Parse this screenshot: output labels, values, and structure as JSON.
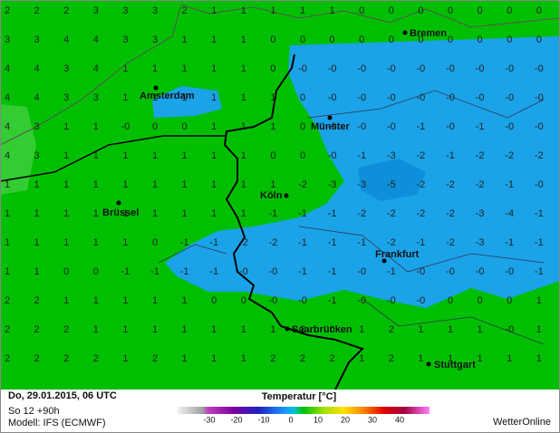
{
  "grid": {
    "rows": [
      [
        "2",
        "2",
        "2",
        "3",
        "3",
        "3",
        "2",
        "1",
        "1",
        "1",
        "1",
        "1",
        "0",
        "0",
        "0",
        "0",
        "0",
        "0",
        "0"
      ],
      [
        "3",
        "3",
        "4",
        "4",
        "3",
        "3",
        "1",
        "1",
        "1",
        "0",
        "0",
        "0",
        "0",
        "0",
        "0",
        "0",
        "0",
        "0",
        "0"
      ],
      [
        "4",
        "4",
        "3",
        "4",
        "1",
        "1",
        "1",
        "1",
        "1",
        "0",
        "-0",
        "-0",
        "-0",
        "-0",
        "-0",
        "-0",
        "-0",
        "-0",
        "-0"
      ],
      [
        "4",
        "4",
        "3",
        "3",
        "1",
        "1",
        "1",
        "1",
        "1",
        "1",
        "0",
        "-0",
        "-0",
        "-0",
        "-0",
        "-0",
        "-0",
        "-0",
        "-0"
      ],
      [
        "4",
        "3",
        "1",
        "1",
        "-0",
        "0",
        "0",
        "1",
        "1",
        "1",
        "0",
        "-0",
        "-0",
        "-0",
        "-1",
        "-0",
        "-1",
        "-0",
        "-0"
      ],
      [
        "4",
        "3",
        "1",
        "1",
        "1",
        "1",
        "1",
        "1",
        "1",
        "0",
        "0",
        "-0",
        "-1",
        "-3",
        "-2",
        "-1",
        "-2",
        "-2",
        "-2"
      ],
      [
        "1",
        "1",
        "1",
        "1",
        "1",
        "1",
        "1",
        "1",
        "1",
        "1",
        "-2",
        "-3",
        "-3",
        "-5",
        "-2",
        "-2",
        "-2",
        "-1",
        "-0"
      ],
      [
        "1",
        "1",
        "1",
        "1",
        "1",
        "1",
        "1",
        "1",
        "1",
        "-1",
        "-1",
        "-1",
        "-2",
        "-2",
        "-2",
        "-2",
        "-3",
        "-4",
        "-1"
      ],
      [
        "1",
        "1",
        "1",
        "1",
        "1",
        "0",
        "-1",
        "-1",
        "-2",
        "-2",
        "-1",
        "-1",
        "-1",
        "-2",
        "-1",
        "-2",
        "-3",
        "-1",
        "-1"
      ],
      [
        "1",
        "1",
        "0",
        "0",
        "-1",
        "-1",
        "-1",
        "-1",
        "-0",
        "-0",
        "-1",
        "-1",
        "-0",
        "-1",
        "-0",
        "-0",
        "-0",
        "-0",
        "-1"
      ],
      [
        "2",
        "2",
        "1",
        "1",
        "1",
        "1",
        "1",
        "0",
        "0",
        "-0",
        "-0",
        "-1",
        "-0",
        "-0",
        "-0",
        "0",
        "0",
        "0",
        "1"
      ],
      [
        "2",
        "2",
        "2",
        "1",
        "1",
        "1",
        "1",
        "1",
        "1",
        "1",
        "2",
        "0",
        "1",
        "2",
        "1",
        "1",
        "1",
        "-0",
        "1"
      ],
      [
        "2",
        "2",
        "2",
        "2",
        "1",
        "2",
        "1",
        "1",
        "1",
        "2",
        "2",
        "2",
        "1",
        "2",
        "1",
        "1",
        "1",
        "1",
        "1"
      ]
    ]
  },
  "cities": [
    "Bremen",
    "Amsterdam",
    "Münster",
    "Köln",
    "Brüssel",
    "Frankfurt",
    "Saarbrücken",
    "Stuttgart"
  ],
  "legend": {
    "title": "Temperatur [°C]",
    "ticks": [
      -30,
      -20,
      -10,
      0,
      10,
      20,
      30,
      40
    ]
  },
  "footer": {
    "date": "Do, 29.01.2015, 06 UTC",
    "run": "So 12 +90h",
    "model": "Modell: IFS (ECMWF)",
    "brand": "WetterOnline"
  }
}
